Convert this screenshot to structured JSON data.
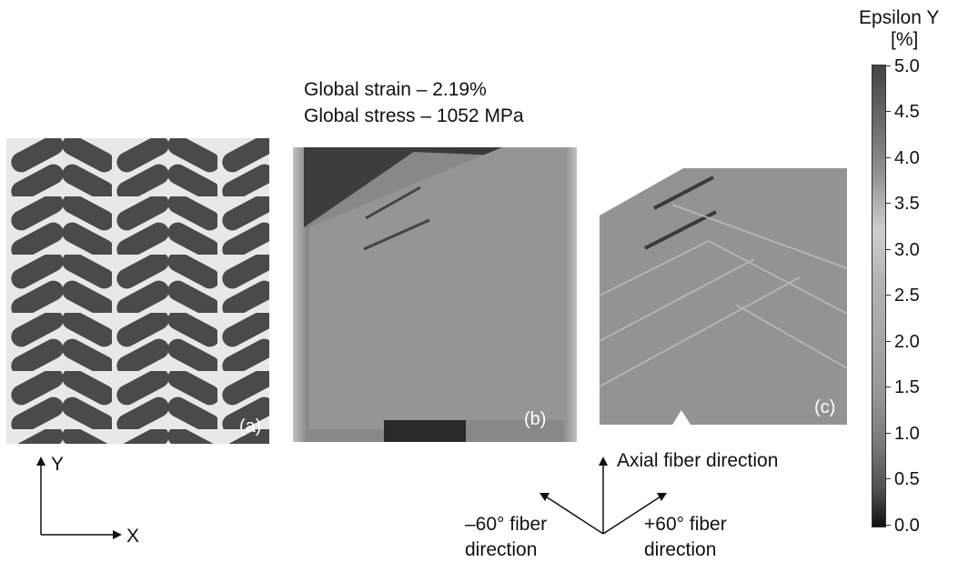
{
  "header": {
    "strain": "Global strain – 2.19%",
    "stress": "Global stress – 1052 MPa"
  },
  "colorbar": {
    "title": "Epsilon Y",
    "unit": "[%]",
    "ticks": [
      "5.0",
      "4.5",
      "4.0",
      "3.5",
      "3.0",
      "2.5",
      "2.0",
      "1.5",
      "1.0",
      "0.5",
      "0.0"
    ]
  },
  "panels": {
    "a_label": "(a)",
    "b_label": "(b)",
    "c_label": "(c)"
  },
  "axes": {
    "y_label": "Y",
    "x_label": "X"
  },
  "directions": {
    "axial": "Axial fiber direction",
    "minus60_line1": "–60° fiber",
    "minus60_line2": "direction",
    "plus60_line1": "+60° fiber",
    "plus60_line2": "direction"
  },
  "colors": {
    "background": "#ffffff",
    "weave_dark": "#4a4a4a",
    "weave_light": "#e6e6e6",
    "strain_field": "#8f8f8f"
  }
}
